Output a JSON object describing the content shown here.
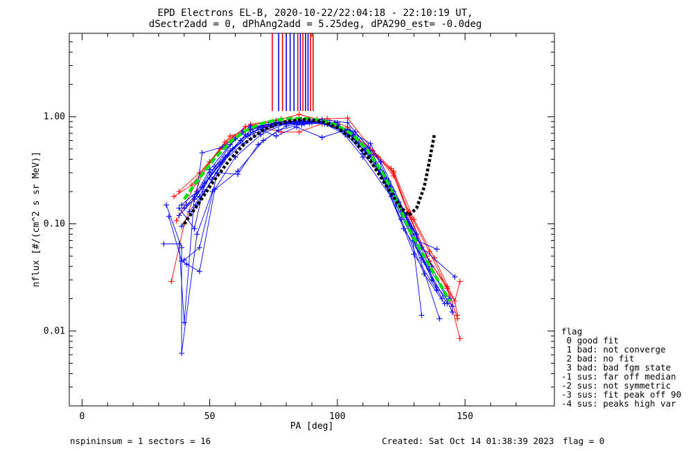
{
  "title_line1": "EPD Electrons EL-B, 2020-10-22/22:04:18 - 22:10:19 UT,",
  "title_line2": "dSectr2add = 0, dPhAng2add = 5.25deg, dPA290_est=  -0.0deg",
  "footer": {
    "left": "nspininsum =  1  sectors = 16",
    "created": "Created: Sat Oct 14 01:38:39 2023",
    "flag": "flag = 0"
  },
  "legend": {
    "title": "flag",
    "items": [
      " 0 good fit",
      " 1 bad: not converge",
      " 2 bad: no fit",
      " 3 bad: bad fgm state",
      "-1 sus: far off median",
      "-2 sus: not symmetric",
      "-3 sus: fit peak off 90",
      "-4 sus: peaks high var"
    ]
  },
  "colors": {
    "series_red": "#ff0000",
    "series_blue": "#0000ff",
    "fit_green": "#00e000",
    "fit_black": "#000000"
  },
  "chart_data": {
    "type": "line",
    "xlabel": "PA [deg]",
    "ylabel": "nflux [#/(cm^2 s sr MeV)]",
    "xlim": [
      -5,
      185
    ],
    "ylim": [
      0.002,
      6
    ],
    "yscale": "log",
    "x_ticks": [
      0,
      50,
      100,
      150
    ],
    "y_ticks": [
      {
        "value": 0.01,
        "label": "0.01"
      },
      {
        "value": 0.1,
        "label": "0.10"
      },
      {
        "value": 1.0,
        "label": "1.00"
      }
    ],
    "vertical_markers": [
      {
        "x": 74.5,
        "color": "red"
      },
      {
        "x": 77,
        "color": "blue"
      },
      {
        "x": 78.5,
        "color": "red"
      },
      {
        "x": 80,
        "color": "blue"
      },
      {
        "x": 81.5,
        "color": "blue"
      },
      {
        "x": 83,
        "color": "blue"
      },
      {
        "x": 84.5,
        "color": "red"
      },
      {
        "x": 85.5,
        "color": "blue"
      },
      {
        "x": 86.5,
        "color": "red"
      },
      {
        "x": 87.5,
        "color": "blue"
      },
      {
        "x": 88.5,
        "color": "blue"
      },
      {
        "x": 89.5,
        "color": "red"
      },
      {
        "x": 90.5,
        "color": "red"
      }
    ],
    "series": [
      {
        "color": "red",
        "points": [
          [
            35,
            0.029
          ],
          [
            40,
            0.1
          ],
          [
            47,
            0.29
          ],
          [
            56,
            0.58
          ],
          [
            66,
            0.85
          ],
          [
            78,
            0.95
          ],
          [
            85,
            1.05
          ],
          [
            92,
            0.95
          ],
          [
            104,
            0.97
          ],
          [
            116,
            0.42
          ],
          [
            122,
            0.28
          ],
          [
            128,
            0.13
          ],
          [
            136,
            0.055
          ],
          [
            143,
            0.025
          ],
          [
            148,
            0.0085
          ]
        ]
      },
      {
        "color": "red",
        "points": [
          [
            37,
            0.107
          ],
          [
            45,
            0.25
          ],
          [
            54,
            0.5
          ],
          [
            64,
            0.81
          ],
          [
            76,
            0.92
          ],
          [
            86,
            0.94
          ],
          [
            96,
            0.96
          ],
          [
            104,
            0.8
          ],
          [
            114,
            0.44
          ],
          [
            122,
            0.31
          ],
          [
            130,
            0.11
          ],
          [
            138,
            0.048
          ],
          [
            146,
            0.019
          ],
          [
            147,
            0.014
          ]
        ]
      },
      {
        "color": "red",
        "points": [
          [
            36,
            0.18
          ],
          [
            43,
            0.23
          ],
          [
            50,
            0.38
          ],
          [
            58,
            0.66
          ],
          [
            66,
            0.76
          ],
          [
            76,
            0.87
          ],
          [
            86,
            0.91
          ],
          [
            95,
            0.88
          ],
          [
            104,
            0.74
          ],
          [
            114,
            0.48
          ],
          [
            121,
            0.33
          ],
          [
            128,
            0.12
          ],
          [
            136,
            0.045
          ],
          [
            143,
            0.026
          ],
          [
            147,
            0.013
          ]
        ]
      },
      {
        "color": "red",
        "points": [
          [
            38,
            0.2
          ],
          [
            46,
            0.3
          ],
          [
            56,
            0.55
          ],
          [
            68,
            0.82
          ],
          [
            78,
            0.72
          ],
          [
            85,
            0.72
          ],
          [
            94,
            0.86
          ],
          [
            104,
            0.75
          ],
          [
            112,
            0.52
          ],
          [
            122,
            0.3
          ],
          [
            129,
            0.11
          ],
          [
            135,
            0.05
          ],
          [
            146,
            0.019
          ],
          [
            148,
            0.029
          ]
        ]
      },
      {
        "color": "blue",
        "points": [
          [
            32,
            0.065
          ],
          [
            38,
            0.065
          ],
          [
            40,
            0.012
          ],
          [
            44,
            0.18
          ],
          [
            50,
            0.32
          ],
          [
            58,
            0.55
          ],
          [
            66,
            0.8
          ],
          [
            76,
            0.87
          ],
          [
            84,
            0.88
          ],
          [
            94,
            0.94
          ],
          [
            104,
            0.88
          ],
          [
            112,
            0.52
          ],
          [
            120,
            0.25
          ],
          [
            129,
            0.09
          ],
          [
            133,
            0.014
          ]
        ]
      },
      {
        "color": "blue",
        "points": [
          [
            33,
            0.15
          ],
          [
            39,
            0.06
          ],
          [
            39,
            0.0062
          ],
          [
            45,
            0.08
          ],
          [
            51,
            0.2
          ],
          [
            61,
            0.31
          ],
          [
            71,
            0.6
          ],
          [
            80,
            0.82
          ],
          [
            90,
            0.9
          ],
          [
            100,
            0.88
          ],
          [
            110,
            0.45
          ],
          [
            120,
            0.24
          ],
          [
            130,
            0.07
          ],
          [
            140,
            0.013
          ]
        ]
      },
      {
        "color": "blue",
        "points": [
          [
            34,
            0.117
          ],
          [
            39,
            0.045
          ],
          [
            41,
            0.042
          ],
          [
            46,
            0.036
          ],
          [
            52,
            0.21
          ],
          [
            60,
            0.42
          ],
          [
            70,
            0.68
          ],
          [
            80,
            0.87
          ],
          [
            90,
            0.88
          ],
          [
            100,
            0.82
          ],
          [
            110,
            0.42
          ],
          [
            121,
            0.18
          ],
          [
            130,
            0.052
          ],
          [
            139,
            0.024
          ]
        ]
      },
      {
        "color": "blue",
        "points": [
          [
            38,
            0.14
          ],
          [
            44,
            0.09
          ],
          [
            48,
            0.24
          ],
          [
            56,
            0.42
          ],
          [
            64,
            0.68
          ],
          [
            74,
            0.84
          ],
          [
            84,
            0.9
          ],
          [
            94,
            0.9
          ],
          [
            106,
            0.66
          ],
          [
            116,
            0.32
          ],
          [
            125,
            0.11
          ],
          [
            134,
            0.034
          ],
          [
            142,
            0.018
          ]
        ]
      },
      {
        "color": "blue",
        "points": [
          [
            40,
            0.046
          ],
          [
            46,
            0.06
          ],
          [
            53,
            0.3
          ],
          [
            61,
            0.29
          ],
          [
            69,
            0.55
          ],
          [
            77,
            0.75
          ],
          [
            87,
            0.86
          ],
          [
            97,
            0.87
          ],
          [
            107,
            0.72
          ],
          [
            117,
            0.38
          ],
          [
            127,
            0.12
          ],
          [
            137,
            0.04
          ],
          [
            145,
            0.015
          ]
        ]
      },
      {
        "color": "blue",
        "points": [
          [
            39,
            0.15
          ],
          [
            45,
            0.2
          ],
          [
            47,
            0.46
          ],
          [
            55,
            0.52
          ],
          [
            63,
            0.74
          ],
          [
            73,
            0.85
          ],
          [
            83,
            0.88
          ],
          [
            93,
            0.91
          ],
          [
            103,
            0.68
          ],
          [
            113,
            0.44
          ],
          [
            123,
            0.15
          ],
          [
            133,
            0.048
          ],
          [
            141,
            0.02
          ]
        ]
      },
      {
        "color": "blue",
        "points": [
          [
            41,
            0.15
          ],
          [
            46,
            0.18
          ],
          [
            52,
            0.34
          ],
          [
            60,
            0.62
          ],
          [
            66,
            0.82
          ],
          [
            76,
            0.66
          ],
          [
            84,
            0.8
          ],
          [
            94,
            0.64
          ],
          [
            104,
            0.76
          ],
          [
            113,
            0.56
          ],
          [
            122,
            0.2
          ],
          [
            131,
            0.08
          ],
          [
            139,
            0.024
          ]
        ]
      },
      {
        "color": "blue",
        "points": [
          [
            39,
            0.095
          ],
          [
            45,
            0.15
          ],
          [
            51,
            0.26
          ],
          [
            59,
            0.5
          ],
          [
            67,
            0.72
          ],
          [
            77,
            0.88
          ],
          [
            86,
            0.84
          ],
          [
            95,
            0.9
          ],
          [
            105,
            0.74
          ],
          [
            115,
            0.36
          ],
          [
            125,
            0.13
          ],
          [
            134,
            0.044
          ],
          [
            143,
            0.018
          ]
        ]
      },
      {
        "color": "blue",
        "points": [
          [
            40,
            0.14
          ],
          [
            47,
            0.22
          ],
          [
            54,
            0.36
          ],
          [
            62,
            0.6
          ],
          [
            70,
            0.8
          ],
          [
            80,
            0.85
          ],
          [
            89,
            0.87
          ],
          [
            99,
            0.88
          ],
          [
            108,
            0.62
          ],
          [
            118,
            0.3
          ],
          [
            128,
            0.1
          ],
          [
            137,
            0.03
          ],
          [
            145,
            0.017
          ]
        ]
      },
      {
        "color": "blue",
        "points": [
          [
            38,
            0.12
          ],
          [
            44,
            0.17
          ],
          [
            50,
            0.3
          ],
          [
            58,
            0.48
          ],
          [
            66,
            0.75
          ],
          [
            76,
            0.89
          ],
          [
            86,
            0.92
          ],
          [
            96,
            0.85
          ],
          [
            106,
            0.68
          ],
          [
            116,
            0.34
          ],
          [
            126,
            0.09
          ],
          [
            136,
            0.038
          ],
          [
            144,
            0.02
          ]
        ]
      },
      {
        "color": "blue",
        "points": [
          [
            42,
            0.13
          ],
          [
            48,
            0.2
          ],
          [
            55,
            0.38
          ],
          [
            63,
            0.56
          ],
          [
            71,
            0.74
          ],
          [
            81,
            0.9
          ],
          [
            91,
            0.92
          ],
          [
            101,
            0.8
          ],
          [
            111,
            0.5
          ],
          [
            121,
            0.22
          ],
          [
            131,
            0.07
          ],
          [
            139,
            0.058
          ]
        ]
      },
      {
        "color": "blue",
        "points": [
          [
            44,
            0.17
          ],
          [
            50,
            0.27
          ],
          [
            57,
            0.44
          ],
          [
            65,
            0.66
          ],
          [
            75,
            0.82
          ],
          [
            85,
            0.88
          ],
          [
            95,
            0.86
          ],
          [
            104,
            0.7
          ],
          [
            114,
            0.4
          ],
          [
            124,
            0.16
          ],
          [
            133,
            0.06
          ],
          [
            146,
            0.032
          ]
        ]
      }
    ],
    "fits": [
      {
        "name": "",
        "color": "green",
        "style": "dashed",
        "points": [
          [
            40,
            0.17
          ],
          [
            46,
            0.27
          ],
          [
            52,
            0.41
          ],
          [
            58,
            0.58
          ],
          [
            64,
            0.74
          ],
          [
            70,
            0.86
          ],
          [
            76,
            0.93
          ],
          [
            82,
            0.96
          ],
          [
            88,
            0.96
          ],
          [
            94,
            0.92
          ],
          [
            100,
            0.83
          ],
          [
            106,
            0.68
          ],
          [
            112,
            0.48
          ],
          [
            118,
            0.29
          ],
          [
            124,
            0.15
          ],
          [
            128,
            0.09
          ],
          [
            132,
            0.06
          ],
          [
            136,
            0.041
          ],
          [
            140,
            0.028
          ],
          [
            144,
            0.019
          ]
        ]
      },
      {
        "name": "",
        "color": "black",
        "style": "dotted",
        "points": [
          [
            40,
            0.1
          ],
          [
            46,
            0.16
          ],
          [
            52,
            0.26
          ],
          [
            58,
            0.4
          ],
          [
            64,
            0.57
          ],
          [
            70,
            0.73
          ],
          [
            76,
            0.85
          ],
          [
            82,
            0.92
          ],
          [
            88,
            0.94
          ],
          [
            94,
            0.9
          ],
          [
            100,
            0.79
          ],
          [
            106,
            0.62
          ],
          [
            112,
            0.42
          ],
          [
            118,
            0.25
          ],
          [
            124,
            0.15
          ],
          [
            128,
            0.12
          ],
          [
            131,
            0.14
          ],
          [
            134,
            0.22
          ],
          [
            136,
            0.38
          ],
          [
            138,
            0.68
          ]
        ]
      }
    ]
  }
}
